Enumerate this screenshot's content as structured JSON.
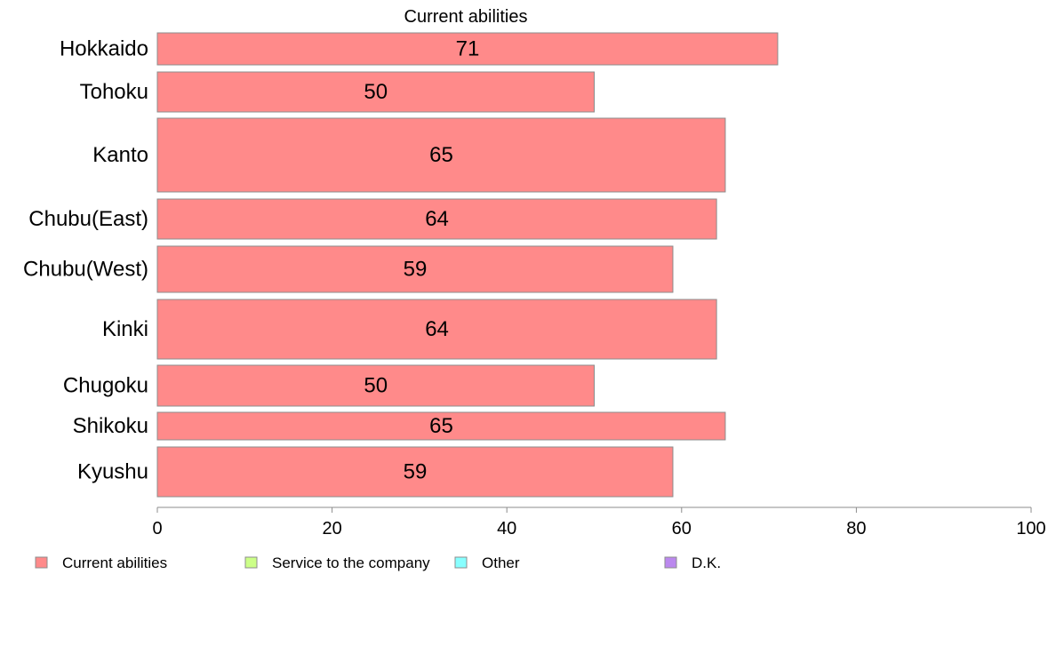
{
  "chart_data": {
    "type": "bar",
    "orientation": "horizontal",
    "title": "Current abilities",
    "categories": [
      "Hokkaido",
      "Tohoku",
      "Kanto",
      "Chubu(East)",
      "Chubu(West)",
      "Kinki",
      "Chugoku",
      "Shikoku",
      "Kyushu"
    ],
    "series": [
      {
        "name": "Current abilities",
        "values": [
          71,
          50,
          65,
          64,
          59,
          64,
          50,
          65,
          59
        ],
        "color": "#ff8a8a"
      }
    ],
    "xlim": [
      0,
      100
    ],
    "xticks": [
      0,
      20,
      40,
      60,
      80,
      100
    ],
    "grid": false,
    "legend_placement": "bottom",
    "legend": [
      {
        "label": "Current abilities",
        "color": "#ff8a8a"
      },
      {
        "label": "Service to the company",
        "color": "#ccff88"
      },
      {
        "label": "Other",
        "color": "#88ffff"
      },
      {
        "label": "D.K.",
        "color": "#bb88ee"
      }
    ]
  }
}
